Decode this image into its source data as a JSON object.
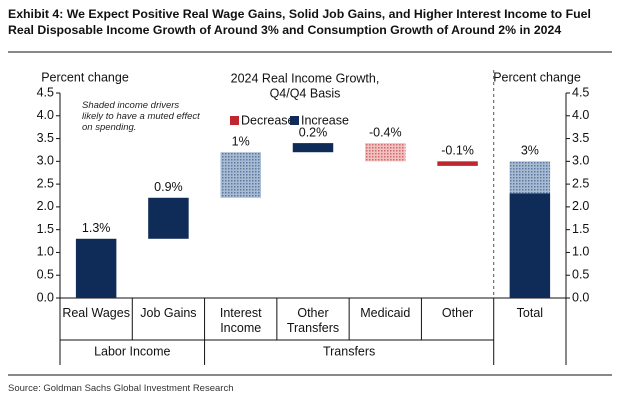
{
  "header": {
    "title": "Exhibit 4: We Expect Positive Real Wage Gains, Solid Job Gains, and Higher Interest Income to Fuel Real Disposable Income Growth of Around 3% and Consumption Growth of Around 2% in 2024"
  },
  "chart_data": {
    "type": "waterfall",
    "title": "2024 Real Income Growth,",
    "subtitle": "Q4/Q4 Basis",
    "y_label": "Percent change",
    "y2_label": "Percent change",
    "annotation": "Shaded income drivers likely to have a muted effect on spending.",
    "categories": [
      "Real Wages",
      "Job Gains",
      "Interest Income",
      "Other Transfers",
      "Medicaid",
      "Other",
      "Total"
    ],
    "groups": [
      {
        "name": "Labor Income",
        "span": [
          0,
          1
        ]
      },
      {
        "name": "Transfers",
        "span": [
          2,
          5
        ]
      }
    ],
    "values": [
      1.3,
      0.9,
      1,
      0.2,
      -0.4,
      -0.1,
      3
    ],
    "value_labels": [
      "1.3%",
      "0.9%",
      "1%",
      "0.2%",
      "-0.4%",
      "-0.1%",
      "3%"
    ],
    "measure": [
      "relative",
      "relative",
      "relative",
      "relative",
      "relative",
      "relative",
      "total"
    ],
    "shaded": [
      false,
      false,
      true,
      false,
      true,
      false,
      false
    ],
    "total_solid_part": 2.3,
    "legend": [
      {
        "name": "Decrease",
        "color": "#c0262d"
      },
      {
        "name": "Increase",
        "color": "#0e2c57"
      }
    ],
    "ylim": [
      0,
      4.5
    ],
    "yticks": [
      {
        "value": 0,
        "label": "0.0"
      },
      0.5,
      {
        "value": 1,
        "label": "1.0"
      },
      1.5,
      {
        "value": 2,
        "label": "2.0"
      },
      2.5,
      {
        "value": 3,
        "label": "3.0"
      },
      3.5,
      {
        "value": 4,
        "label": "4.0"
      },
      4.5
    ],
    "y2lim": [
      0,
      4.5
    ],
    "y2ticks": [
      {
        "value": 0,
        "label": "0.0"
      },
      0.5,
      {
        "value": 1,
        "label": "1.0"
      },
      1.5,
      {
        "value": 2,
        "label": "2.0"
      },
      2.5,
      {
        "value": 3,
        "label": "3.0"
      },
      3.5,
      {
        "value": 4,
        "label": "4.0"
      },
      4.5
    ]
  },
  "footer": {
    "source": "Source: Goldman Sachs Global Investment Research"
  }
}
